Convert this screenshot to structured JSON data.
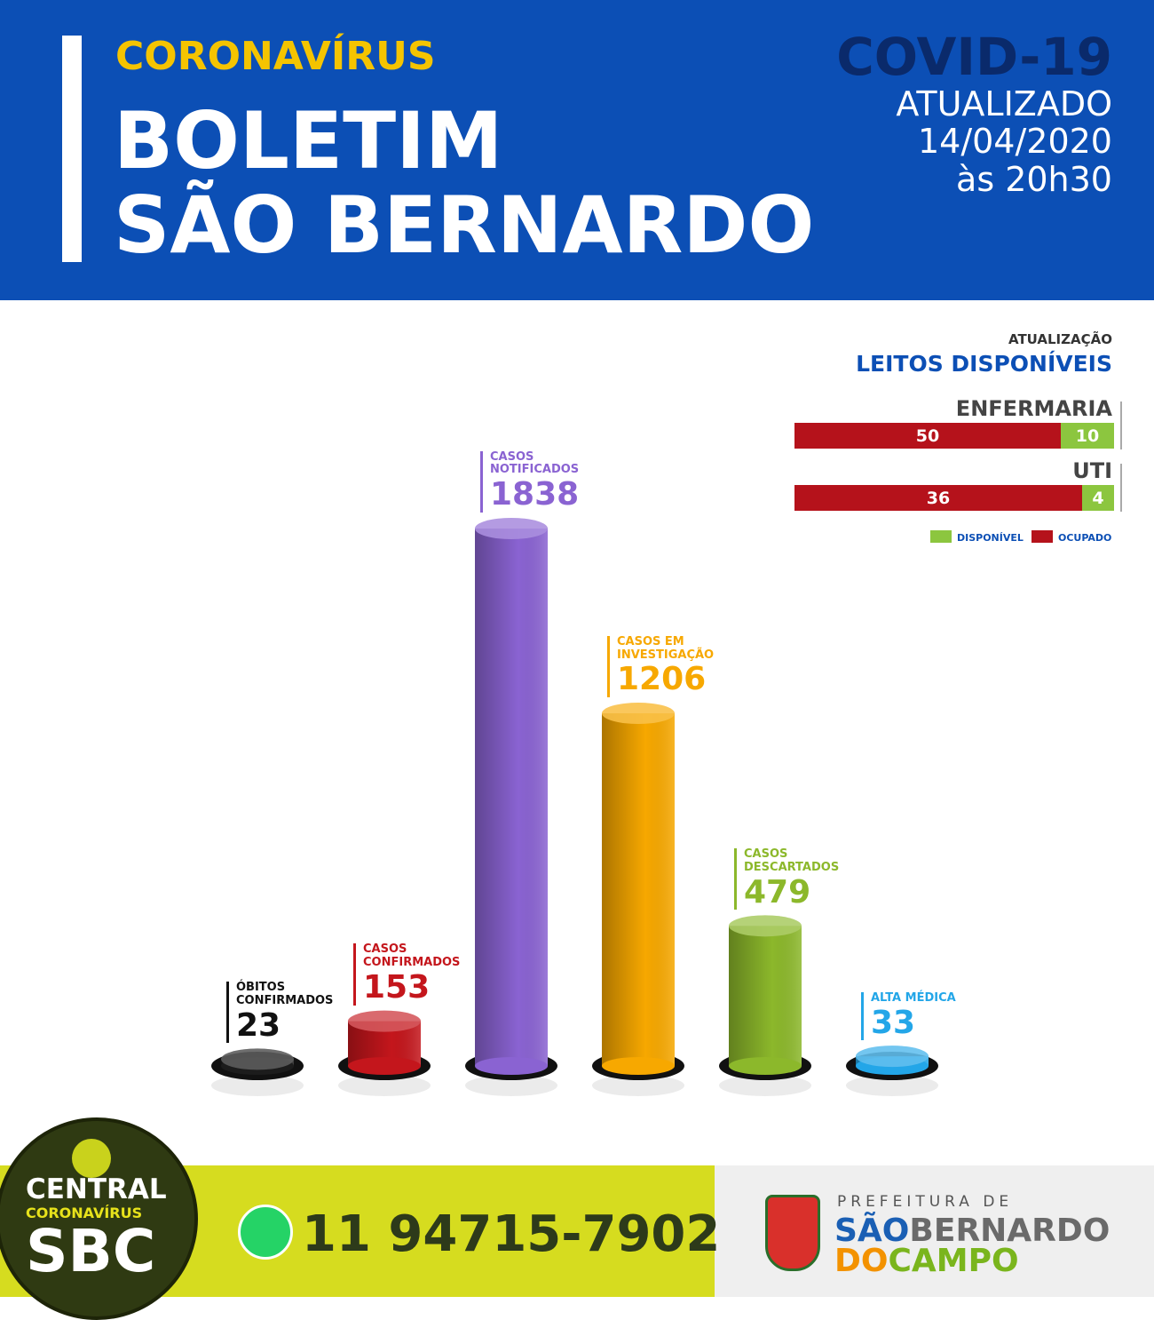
{
  "header": {
    "kicker": "CORONAVÍRUS",
    "title_line1": "BOLETIM",
    "title_line2": "SÃO BERNARDO",
    "badge": "COVID-19",
    "updated": "ATUALIZADO",
    "date": "14/04/2020",
    "time": "às 20h30"
  },
  "chart_data": [
    {
      "type": "cylinder",
      "categories": [
        "ÓBITOS CONFIRMADOS",
        "CASOS CONFIRMADOS",
        "CASOS NOTIFICADOS",
        "CASOS EM INVESTIGAÇÃO",
        "CASOS DESCARTADOS",
        "ALTA MÉDICA"
      ],
      "values": [
        23,
        153,
        1838,
        1206,
        479,
        33
      ],
      "colors": [
        "#1c1c1c",
        "#c4161c",
        "#8a63d2",
        "#f7a800",
        "#8cb82b",
        "#23a6e8"
      ]
    },
    {
      "type": "stacked-hbar",
      "subtitle": "ATUALIZAÇÃO",
      "title": "LEITOS DISPONÍVEIS",
      "categories": [
        "ENFERMARIA",
        "UTI"
      ],
      "series": [
        {
          "name": "OCUPADO",
          "color": "#b5121b",
          "values": [
            50,
            36
          ]
        },
        {
          "name": "DISPONÍVEL",
          "color": "#8cc63f",
          "values": [
            10,
            4
          ]
        }
      ]
    }
  ],
  "footer": {
    "logo_line1": "CENTRAL",
    "logo_line2": "CORONAVÍRUS",
    "logo_line3": "SBC",
    "phone": "11 94715-7902",
    "city_prefix": "PREFEITURA DE",
    "city_a": "SÃO",
    "city_b": "BERNARDO",
    "city_c": "DO",
    "city_d": "CAMPO"
  }
}
